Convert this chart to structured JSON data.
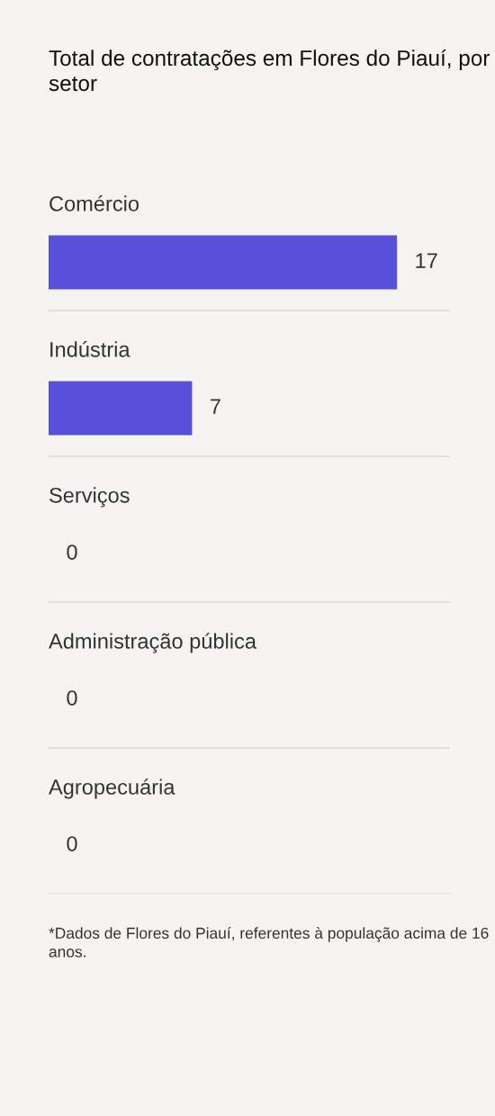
{
  "chart_data": {
    "type": "bar",
    "orientation": "horizontal",
    "title": "Total de contratações em Flores do Piauí, por setor",
    "categories": [
      "Comércio",
      "Indústria",
      "Serviços",
      "Administração pública",
      "Agropecuária"
    ],
    "values": [
      17,
      7,
      0,
      0,
      0
    ],
    "color": "#5651d8",
    "data_labels": true,
    "grid": "y",
    "legend": false,
    "annotations": [
      "*Dados de Flores do Piauí, referentes à população acima de 16 anos."
    ]
  }
}
